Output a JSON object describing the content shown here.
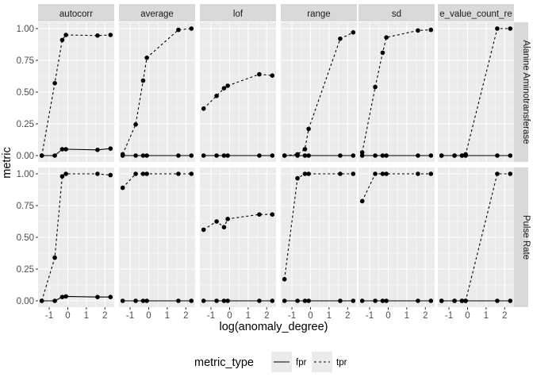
{
  "chart_data": {
    "type": "line",
    "xlabel": "log(anomaly_degree)",
    "ylabel": "metric",
    "x_ticks": [
      -1,
      0,
      1,
      2
    ],
    "y_ticks": [
      0.0,
      0.25,
      0.5,
      0.75,
      1.0
    ],
    "y_tick_labels": [
      "0.00",
      "0.25",
      "0.50",
      "0.75",
      "1.00"
    ],
    "xlim": [
      -1.6,
      2.5
    ],
    "ylim": [
      -0.05,
      1.05
    ],
    "x": [
      -1.4,
      -0.7,
      -0.3,
      -0.1,
      1.6,
      2.3
    ],
    "columns": [
      "autocorr",
      "average",
      "lof",
      "range",
      "sd",
      "e_value_count_re"
    ],
    "rows": [
      "Alanine Aminotransferase",
      "Pulse Rate"
    ],
    "legend": {
      "title": "metric_type",
      "position": "bottom",
      "entries": [
        "fpr",
        "tpr"
      ]
    },
    "panels": [
      {
        "row": "Alanine Aminotransferase",
        "column": "autocorr",
        "series": [
          {
            "name": "fpr",
            "values": [
              0.0,
              0.0,
              0.05,
              0.05,
              0.045,
              0.055
            ]
          },
          {
            "name": "tpr",
            "values": [
              0.0,
              0.57,
              0.91,
              0.95,
              0.945,
              0.95
            ]
          }
        ]
      },
      {
        "row": "Alanine Aminotransferase",
        "column": "average",
        "series": [
          {
            "name": "fpr",
            "values": [
              0.0,
              0.0,
              0.0,
              0.0,
              0.0,
              0.0
            ]
          },
          {
            "name": "tpr",
            "values": [
              0.01,
              0.245,
              0.59,
              0.77,
              0.99,
              1.0
            ]
          }
        ]
      },
      {
        "row": "Alanine Aminotransferase",
        "column": "lof",
        "series": [
          {
            "name": "fpr",
            "values": [
              0.0,
              0.0,
              0.0,
              0.0,
              0.0,
              0.0
            ]
          },
          {
            "name": "tpr",
            "values": [
              0.37,
              0.47,
              0.53,
              0.55,
              0.64,
              0.63
            ]
          }
        ]
      },
      {
        "row": "Alanine Aminotransferase",
        "column": "range",
        "series": [
          {
            "name": "fpr",
            "values": [
              0.0,
              0.0,
              0.0,
              0.0,
              0.0,
              0.0
            ]
          },
          {
            "name": "tpr",
            "values": [
              0.0,
              0.01,
              0.05,
              0.21,
              0.92,
              0.97
            ]
          }
        ]
      },
      {
        "row": "Alanine Aminotransferase",
        "column": "sd",
        "series": [
          {
            "name": "fpr",
            "values": [
              0.0,
              0.0,
              0.0,
              0.0,
              0.0,
              0.0
            ]
          },
          {
            "name": "tpr",
            "values": [
              0.025,
              0.54,
              0.81,
              0.93,
              0.985,
              0.99
            ]
          }
        ]
      },
      {
        "row": "Alanine Aminotransferase",
        "column": "e_value_count_re",
        "series": [
          {
            "name": "fpr",
            "values": [
              0.0,
              0.0,
              0.0,
              0.0,
              0.0,
              0.0
            ]
          },
          {
            "name": "tpr",
            "values": [
              0.0,
              0.0,
              0.0,
              0.01,
              1.0,
              1.0
            ]
          }
        ]
      },
      {
        "row": "Pulse Rate",
        "column": "autocorr",
        "series": [
          {
            "name": "fpr",
            "values": [
              0.0,
              0.0,
              0.03,
              0.035,
              0.03,
              0.03
            ]
          },
          {
            "name": "tpr",
            "values": [
              0.0,
              0.34,
              0.98,
              1.0,
              1.0,
              0.99
            ]
          }
        ]
      },
      {
        "row": "Pulse Rate",
        "column": "average",
        "series": [
          {
            "name": "fpr",
            "values": [
              0.0,
              0.0,
              0.0,
              0.0,
              0.0,
              0.0
            ]
          },
          {
            "name": "tpr",
            "values": [
              0.89,
              1.0,
              1.0,
              1.0,
              1.0,
              1.0
            ]
          }
        ]
      },
      {
        "row": "Pulse Rate",
        "column": "lof",
        "series": [
          {
            "name": "fpr",
            "values": [
              0.0,
              0.0,
              0.0,
              0.0,
              0.0,
              0.0
            ]
          },
          {
            "name": "tpr",
            "values": [
              0.56,
              0.625,
              0.58,
              0.645,
              0.68,
              0.68
            ]
          }
        ]
      },
      {
        "row": "Pulse Rate",
        "column": "range",
        "series": [
          {
            "name": "fpr",
            "values": [
              0.0,
              0.0,
              0.0,
              0.0,
              0.0,
              0.0
            ]
          },
          {
            "name": "tpr",
            "values": [
              0.17,
              0.965,
              1.0,
              1.0,
              1.0,
              1.0
            ]
          }
        ]
      },
      {
        "row": "Pulse Rate",
        "column": "sd",
        "series": [
          {
            "name": "fpr",
            "values": [
              0.0,
              0.0,
              0.0,
              0.0,
              0.0,
              0.0
            ]
          },
          {
            "name": "tpr",
            "values": [
              0.785,
              1.0,
              1.0,
              1.0,
              1.0,
              1.0
            ]
          }
        ]
      },
      {
        "row": "Pulse Rate",
        "column": "e_value_count_re",
        "series": [
          {
            "name": "fpr",
            "values": [
              0.0,
              0.0,
              0.0,
              0.0,
              0.0,
              0.0
            ]
          },
          {
            "name": "tpr",
            "values": [
              0.0,
              0.0,
              0.0,
              0.0,
              1.0,
              1.0
            ]
          }
        ]
      }
    ]
  }
}
